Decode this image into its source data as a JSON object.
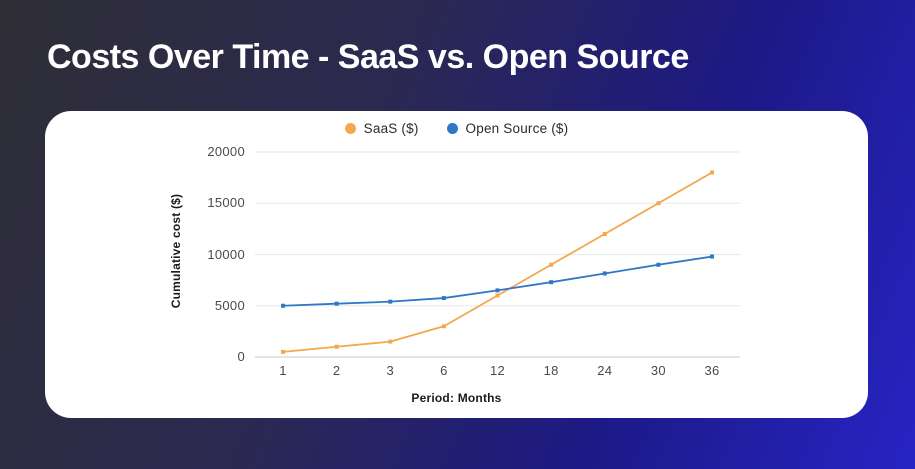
{
  "page": {
    "title": "Costs Over Time - SaaS vs. Open Source"
  },
  "colors": {
    "background_left": "#2f2e36",
    "background_right": "#2724c5",
    "card": "#ffffff",
    "saas_line": "#f4a74c",
    "open_source_line": "#2e78c6",
    "gridline": "#ebebeb",
    "zero_axis_line": "#dcdcdc",
    "tick_text": "#4b4b4b",
    "axis_title_text": "#1b1b1b",
    "legend_text": "#2b2b2b",
    "title_text": "#ffffff"
  },
  "chart_data": {
    "type": "line",
    "title": "",
    "xlabel": "Period: Months",
    "ylabel": "Cumulative cost ($)",
    "categories": [
      "1",
      "2",
      "3",
      "6",
      "12",
      "18",
      "24",
      "30",
      "36"
    ],
    "y_ticks": [
      0,
      5000,
      10000,
      15000,
      20000
    ],
    "ylim": [
      0,
      20000
    ],
    "grid": true,
    "legend_position": "top-center",
    "marker_shape": "square",
    "series": [
      {
        "name": "SaaS ($)",
        "color": "#f4a74c",
        "values": [
          500,
          1000,
          1500,
          3000,
          6000,
          9000,
          12000,
          15000,
          18000
        ]
      },
      {
        "name": "Open Source ($)",
        "color": "#2e78c6",
        "values": [
          5000,
          5200,
          5400,
          5750,
          6500,
          7300,
          8150,
          9000,
          9800
        ]
      }
    ]
  }
}
